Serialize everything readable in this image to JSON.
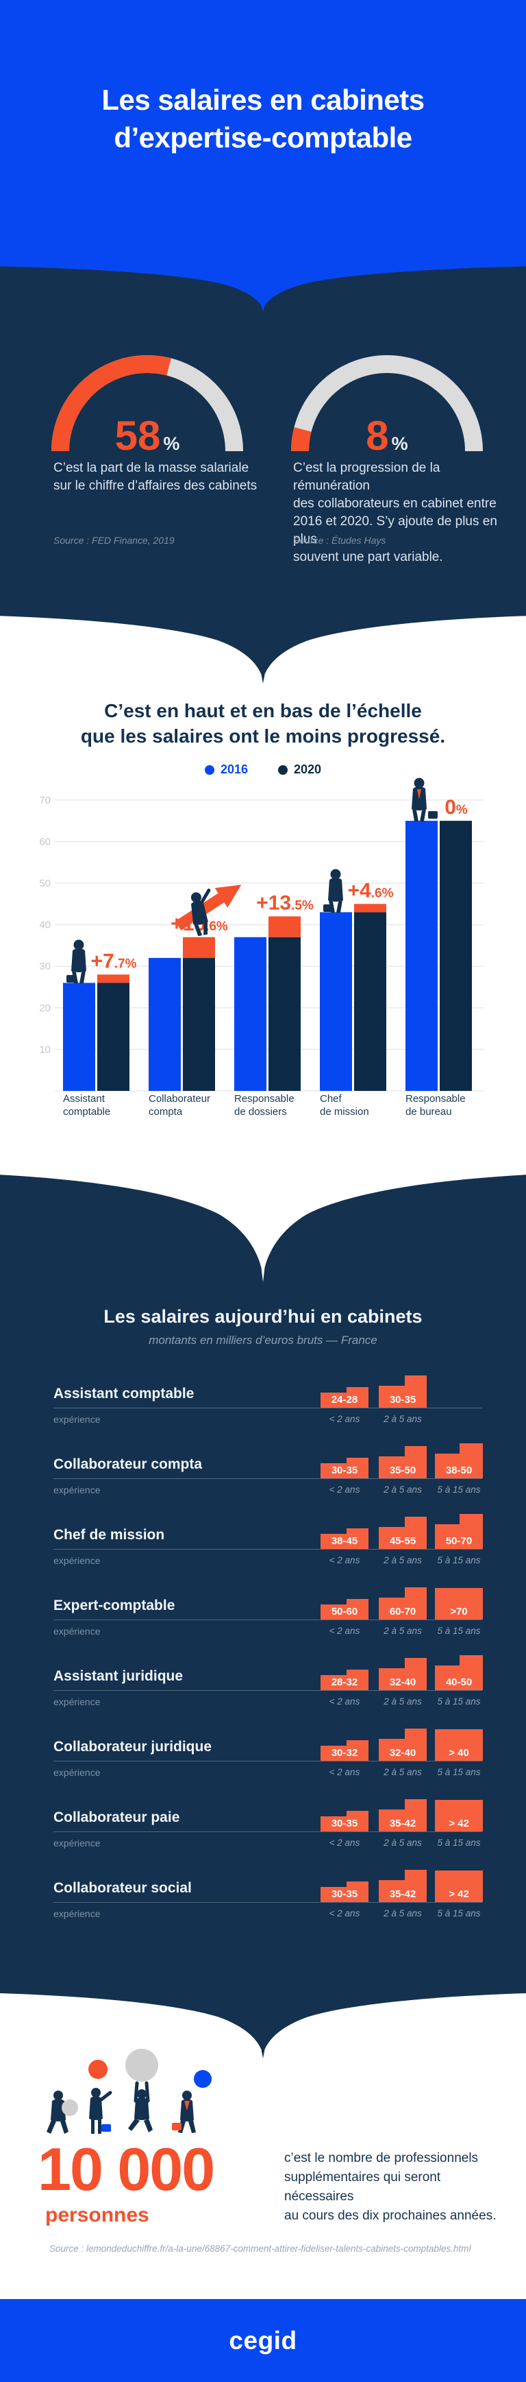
{
  "colors": {
    "blue": "#0747F2",
    "navy": "#14314F",
    "bar_navy": "#0D2B46",
    "orange": "#F4512C",
    "badge_orange": "#F7603F",
    "arc_gray": "#DCDCDC",
    "grid_gray": "#E9E9E9"
  },
  "header": {
    "title_line1": "Les salaires en cabinets",
    "title_line2": "d’expertise-comptable"
  },
  "stats": {
    "gauges": [
      {
        "value_pct": 58,
        "display": "58",
        "unit": "%",
        "caption_lines": [
          "C’est la part de la masse salariale",
          "sur le chiffre d’affaires des cabinets"
        ],
        "source": "Source : FED Finance, 2019"
      },
      {
        "value_pct": 8,
        "display": "8",
        "unit": "%",
        "caption_lines": [
          "C’est la progression de la rémunération",
          "des collaborateurs en cabinet entre",
          "2016 et 2020. S’y ajoute de plus en plus",
          "souvent une part variable."
        ],
        "source": "Source : Études Hays"
      }
    ]
  },
  "evolution": {
    "title_line1": "C’est en haut et en bas de l’échelle",
    "title_line2": "que les salaires ont le moins progressé.",
    "legend": [
      {
        "label": "2016",
        "color": "#0747F2"
      },
      {
        "label": "2020",
        "color": "#0D2B46"
      }
    ],
    "chart_data": {
      "type": "bar",
      "categories": [
        [
          "Assistant",
          "comptable"
        ],
        [
          "Collaborateur",
          "compta"
        ],
        [
          "Responsable",
          "de dossiers"
        ],
        [
          "Chef",
          "de mission"
        ],
        [
          "Responsable",
          "de bureau"
        ]
      ],
      "series": [
        {
          "name": "2016",
          "values": [
            26,
            32,
            37,
            43,
            65
          ]
        },
        {
          "name": "2020",
          "values": [
            28,
            37,
            42,
            45,
            65
          ]
        }
      ],
      "growth_pct": [
        7.7,
        15.6,
        13.5,
        4.6,
        0
      ],
      "growth_labels": [
        {
          "main": "+7",
          "small": ".7%"
        },
        {
          "main": "+15",
          "small": ".6%"
        },
        {
          "main": "+13",
          "small": ".5%"
        },
        {
          "main": "+4",
          "small": ".6%"
        },
        {
          "main": "0",
          "small": "%"
        }
      ],
      "ylabel": "",
      "xlabel": "",
      "ylim": [
        0,
        75
      ],
      "yticks": [
        10,
        20,
        30,
        40,
        50,
        60,
        70
      ],
      "grid": true,
      "legend_position": "top"
    }
  },
  "salaries": {
    "title": "Les salaires aujourd’hui en cabinets",
    "subtitle": "montants en milliers d’euros bruts — France",
    "experience_label": "expérience",
    "rows": [
      {
        "job": "Assistant comptable",
        "badges": [
          {
            "range": "24-28",
            "exp": "< 2 ans"
          },
          {
            "range": "30-35",
            "exp": "2 à 5 ans"
          }
        ]
      },
      {
        "job": "Collaborateur compta",
        "badges": [
          {
            "range": "30-35",
            "exp": "< 2 ans"
          },
          {
            "range": "35-50",
            "exp": "2 à 5 ans"
          },
          {
            "range": "38-50",
            "exp": "5 à 15 ans"
          }
        ]
      },
      {
        "job": "Chef de mission",
        "badges": [
          {
            "range": "38-45",
            "exp": "< 2 ans"
          },
          {
            "range": "45-55",
            "exp": "2 à 5 ans"
          },
          {
            "range": "50-70",
            "exp": "5 à 15 ans"
          }
        ]
      },
      {
        "job": "Expert-comptable",
        "badges": [
          {
            "range": "50-60",
            "exp": "< 2 ans"
          },
          {
            "range": "60-70",
            "exp": "2 à 5 ans"
          },
          {
            "range": ">70",
            "exp": "5 à 15 ans"
          }
        ]
      },
      {
        "job": "Assistant juridique",
        "badges": [
          {
            "range": "28-32",
            "exp": "< 2 ans"
          },
          {
            "range": "32-40",
            "exp": "2 à 5 ans"
          },
          {
            "range": "40-50",
            "exp": "5 à 15 ans"
          }
        ]
      },
      {
        "job": "Collaborateur juridique",
        "badges": [
          {
            "range": "30-32",
            "exp": "< 2 ans"
          },
          {
            "range": "32-40",
            "exp": "2 à 5 ans"
          },
          {
            "range": "> 40",
            "exp": "5 à 15 ans"
          }
        ]
      },
      {
        "job": "Collaborateur paie",
        "badges": [
          {
            "range": "30-35",
            "exp": "< 2 ans"
          },
          {
            "range": "35-42",
            "exp": "2 à 5 ans"
          },
          {
            "range": "> 42",
            "exp": "5 à 15 ans"
          }
        ]
      },
      {
        "job": "Collaborateur social",
        "badges": [
          {
            "range": "30-35",
            "exp": "< 2 ans"
          },
          {
            "range": "35-42",
            "exp": "2 à 5 ans"
          },
          {
            "range": "> 42",
            "exp": "5 à 15 ans"
          }
        ]
      }
    ]
  },
  "hiring": {
    "number": "10 000",
    "number_label": "personnes",
    "caption_lines": [
      "c’est le nombre de professionnels",
      "supplémentaires qui seront nécessaires",
      "au cours des dix prochaines années."
    ],
    "source": "Source : lemondeduchiffre.fr/a-la-une/68867-comment-attirer-fideliser-talents-cabinets-comptables.html"
  },
  "footer": {
    "logo": "cegid"
  }
}
